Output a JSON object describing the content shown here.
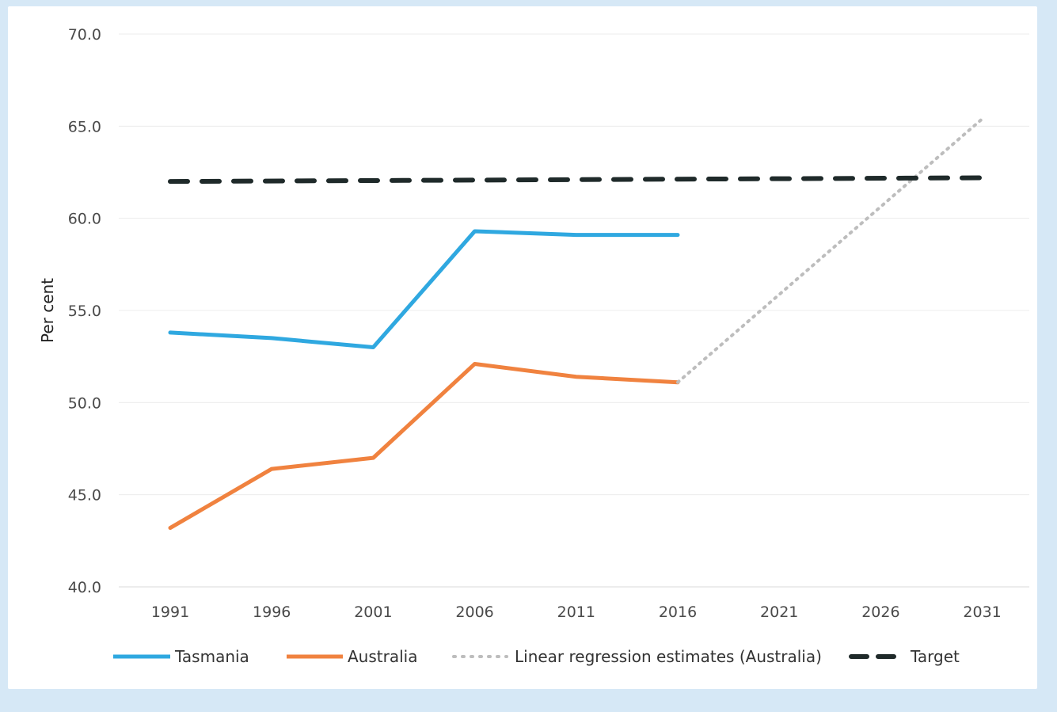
{
  "chart_data": {
    "type": "line",
    "ylabel": "Per cent",
    "ylim": [
      40,
      70
    ],
    "yticks": [
      "70.0",
      "65.0",
      "60.0",
      "55.0",
      "50.0",
      "45.0",
      "40.0"
    ],
    "x": [
      "1991",
      "1996",
      "2001",
      "2006",
      "2011",
      "2016",
      "2021",
      "2026",
      "2031"
    ],
    "series": [
      {
        "name": "Tasmania",
        "color": "#2fa8e0",
        "style": "solid",
        "points": [
          [
            1991,
            53.8
          ],
          [
            1996,
            53.5
          ],
          [
            2001,
            53.0
          ],
          [
            2006,
            59.3
          ],
          [
            2011,
            59.1
          ],
          [
            2016,
            59.1
          ]
        ]
      },
      {
        "name": "Australia",
        "color": "#f0823f",
        "style": "solid",
        "points": [
          [
            1991,
            43.2
          ],
          [
            1996,
            46.4
          ],
          [
            2001,
            47.0
          ],
          [
            2006,
            52.1
          ],
          [
            2011,
            51.4
          ],
          [
            2016,
            51.1
          ]
        ]
      },
      {
        "name": "Linear regression estimates (Australia)",
        "color": "#bdbdbd",
        "style": "dotted",
        "points": [
          [
            2016,
            51.1
          ],
          [
            2031,
            65.4
          ]
        ]
      },
      {
        "name": "Target",
        "color": "#1f2a2a",
        "style": "dashed",
        "points": [
          [
            1991,
            62.0
          ],
          [
            2031,
            62.2
          ]
        ]
      }
    ],
    "grid": true,
    "legend_position": "bottom"
  }
}
